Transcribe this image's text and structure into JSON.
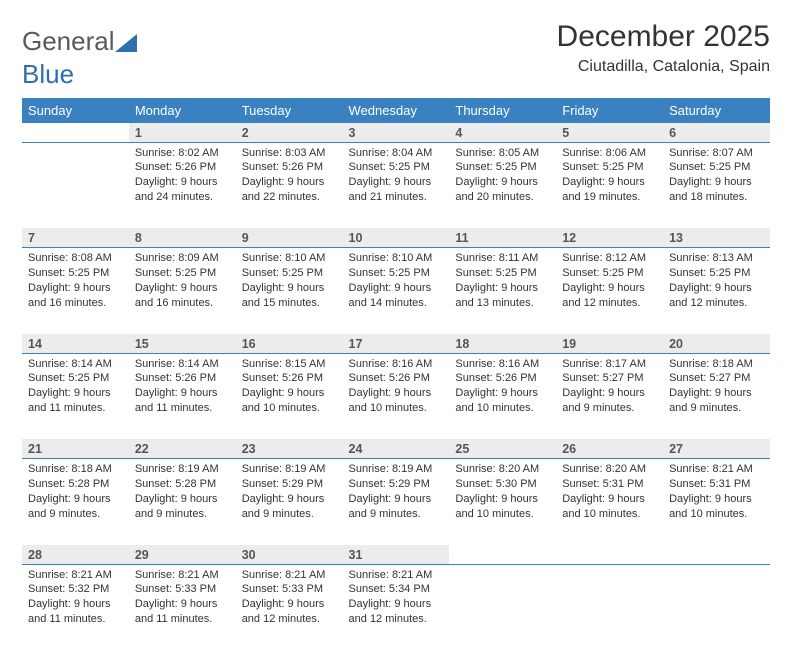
{
  "logo": {
    "word1": "General",
    "word2": "Blue"
  },
  "title": {
    "month": "December 2025",
    "location": "Ciutadilla, Catalonia, Spain"
  },
  "header_bg": "#3a81c2",
  "day_headers": [
    "Sunday",
    "Monday",
    "Tuesday",
    "Wednesday",
    "Thursday",
    "Friday",
    "Saturday"
  ],
  "weeks": [
    [
      null,
      {
        "n": "1",
        "sr": "Sunrise: 8:02 AM",
        "ss": "Sunset: 5:26 PM",
        "dl": "Daylight: 9 hours and 24 minutes."
      },
      {
        "n": "2",
        "sr": "Sunrise: 8:03 AM",
        "ss": "Sunset: 5:26 PM",
        "dl": "Daylight: 9 hours and 22 minutes."
      },
      {
        "n": "3",
        "sr": "Sunrise: 8:04 AM",
        "ss": "Sunset: 5:25 PM",
        "dl": "Daylight: 9 hours and 21 minutes."
      },
      {
        "n": "4",
        "sr": "Sunrise: 8:05 AM",
        "ss": "Sunset: 5:25 PM",
        "dl": "Daylight: 9 hours and 20 minutes."
      },
      {
        "n": "5",
        "sr": "Sunrise: 8:06 AM",
        "ss": "Sunset: 5:25 PM",
        "dl": "Daylight: 9 hours and 19 minutes."
      },
      {
        "n": "6",
        "sr": "Sunrise: 8:07 AM",
        "ss": "Sunset: 5:25 PM",
        "dl": "Daylight: 9 hours and 18 minutes."
      }
    ],
    [
      {
        "n": "7",
        "sr": "Sunrise: 8:08 AM",
        "ss": "Sunset: 5:25 PM",
        "dl": "Daylight: 9 hours and 16 minutes."
      },
      {
        "n": "8",
        "sr": "Sunrise: 8:09 AM",
        "ss": "Sunset: 5:25 PM",
        "dl": "Daylight: 9 hours and 16 minutes."
      },
      {
        "n": "9",
        "sr": "Sunrise: 8:10 AM",
        "ss": "Sunset: 5:25 PM",
        "dl": "Daylight: 9 hours and 15 minutes."
      },
      {
        "n": "10",
        "sr": "Sunrise: 8:10 AM",
        "ss": "Sunset: 5:25 PM",
        "dl": "Daylight: 9 hours and 14 minutes."
      },
      {
        "n": "11",
        "sr": "Sunrise: 8:11 AM",
        "ss": "Sunset: 5:25 PM",
        "dl": "Daylight: 9 hours and 13 minutes."
      },
      {
        "n": "12",
        "sr": "Sunrise: 8:12 AM",
        "ss": "Sunset: 5:25 PM",
        "dl": "Daylight: 9 hours and 12 minutes."
      },
      {
        "n": "13",
        "sr": "Sunrise: 8:13 AM",
        "ss": "Sunset: 5:25 PM",
        "dl": "Daylight: 9 hours and 12 minutes."
      }
    ],
    [
      {
        "n": "14",
        "sr": "Sunrise: 8:14 AM",
        "ss": "Sunset: 5:25 PM",
        "dl": "Daylight: 9 hours and 11 minutes."
      },
      {
        "n": "15",
        "sr": "Sunrise: 8:14 AM",
        "ss": "Sunset: 5:26 PM",
        "dl": "Daylight: 9 hours and 11 minutes."
      },
      {
        "n": "16",
        "sr": "Sunrise: 8:15 AM",
        "ss": "Sunset: 5:26 PM",
        "dl": "Daylight: 9 hours and 10 minutes."
      },
      {
        "n": "17",
        "sr": "Sunrise: 8:16 AM",
        "ss": "Sunset: 5:26 PM",
        "dl": "Daylight: 9 hours and 10 minutes."
      },
      {
        "n": "18",
        "sr": "Sunrise: 8:16 AM",
        "ss": "Sunset: 5:26 PM",
        "dl": "Daylight: 9 hours and 10 minutes."
      },
      {
        "n": "19",
        "sr": "Sunrise: 8:17 AM",
        "ss": "Sunset: 5:27 PM",
        "dl": "Daylight: 9 hours and 9 minutes."
      },
      {
        "n": "20",
        "sr": "Sunrise: 8:18 AM",
        "ss": "Sunset: 5:27 PM",
        "dl": "Daylight: 9 hours and 9 minutes."
      }
    ],
    [
      {
        "n": "21",
        "sr": "Sunrise: 8:18 AM",
        "ss": "Sunset: 5:28 PM",
        "dl": "Daylight: 9 hours and 9 minutes."
      },
      {
        "n": "22",
        "sr": "Sunrise: 8:19 AM",
        "ss": "Sunset: 5:28 PM",
        "dl": "Daylight: 9 hours and 9 minutes."
      },
      {
        "n": "23",
        "sr": "Sunrise: 8:19 AM",
        "ss": "Sunset: 5:29 PM",
        "dl": "Daylight: 9 hours and 9 minutes."
      },
      {
        "n": "24",
        "sr": "Sunrise: 8:19 AM",
        "ss": "Sunset: 5:29 PM",
        "dl": "Daylight: 9 hours and 9 minutes."
      },
      {
        "n": "25",
        "sr": "Sunrise: 8:20 AM",
        "ss": "Sunset: 5:30 PM",
        "dl": "Daylight: 9 hours and 10 minutes."
      },
      {
        "n": "26",
        "sr": "Sunrise: 8:20 AM",
        "ss": "Sunset: 5:31 PM",
        "dl": "Daylight: 9 hours and 10 minutes."
      },
      {
        "n": "27",
        "sr": "Sunrise: 8:21 AM",
        "ss": "Sunset: 5:31 PM",
        "dl": "Daylight: 9 hours and 10 minutes."
      }
    ],
    [
      {
        "n": "28",
        "sr": "Sunrise: 8:21 AM",
        "ss": "Sunset: 5:32 PM",
        "dl": "Daylight: 9 hours and 11 minutes."
      },
      {
        "n": "29",
        "sr": "Sunrise: 8:21 AM",
        "ss": "Sunset: 5:33 PM",
        "dl": "Daylight: 9 hours and 11 minutes."
      },
      {
        "n": "30",
        "sr": "Sunrise: 8:21 AM",
        "ss": "Sunset: 5:33 PM",
        "dl": "Daylight: 9 hours and 12 minutes."
      },
      {
        "n": "31",
        "sr": "Sunrise: 8:21 AM",
        "ss": "Sunset: 5:34 PM",
        "dl": "Daylight: 9 hours and 12 minutes."
      },
      null,
      null,
      null
    ]
  ]
}
